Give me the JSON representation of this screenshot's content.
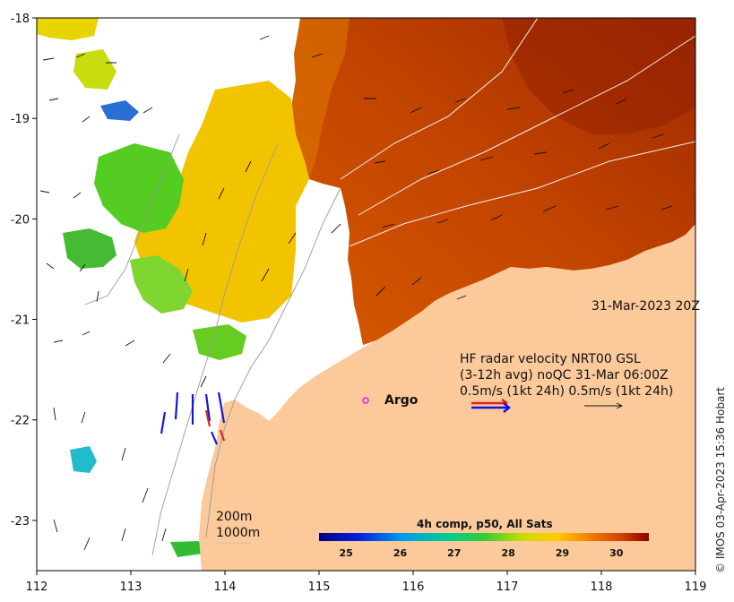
{
  "map": {
    "x_ticks": [
      "112",
      "113",
      "114",
      "115",
      "116",
      "117",
      "118",
      "119"
    ],
    "y_ticks": [
      "-18",
      "-19",
      "-20",
      "-21",
      "-22",
      "-23"
    ],
    "x_range": [
      112,
      119
    ],
    "y_range": [
      -23.5,
      -18
    ],
    "timestamp_label": "31-Mar-2023 20Z",
    "radar": {
      "line1": "HF radar velocity  NRT00 GSL",
      "line2": "(3-12h avg) noQC 31-Mar 06:00Z",
      "line3": "0.5m/s (1kt 24h)  0.5m/s (1kt 24h)"
    },
    "argo_label": "Argo",
    "isobath_200": "200m",
    "isobath_1000": "1000m",
    "colorbar": {
      "title": "4h comp, p50, All Sats",
      "ticks": [
        "25",
        "26",
        "27",
        "28",
        "29",
        "30"
      ],
      "min": 24.5,
      "max": 30.6
    },
    "credit": "© IMOS 03-Apr-2023 15:36 Hobart",
    "colors": {
      "land": "#fbc99a",
      "warm": "#b33a00",
      "vector_blue": "#1414e0",
      "vector_red": "#e02020",
      "argo": "#e020e0"
    }
  }
}
